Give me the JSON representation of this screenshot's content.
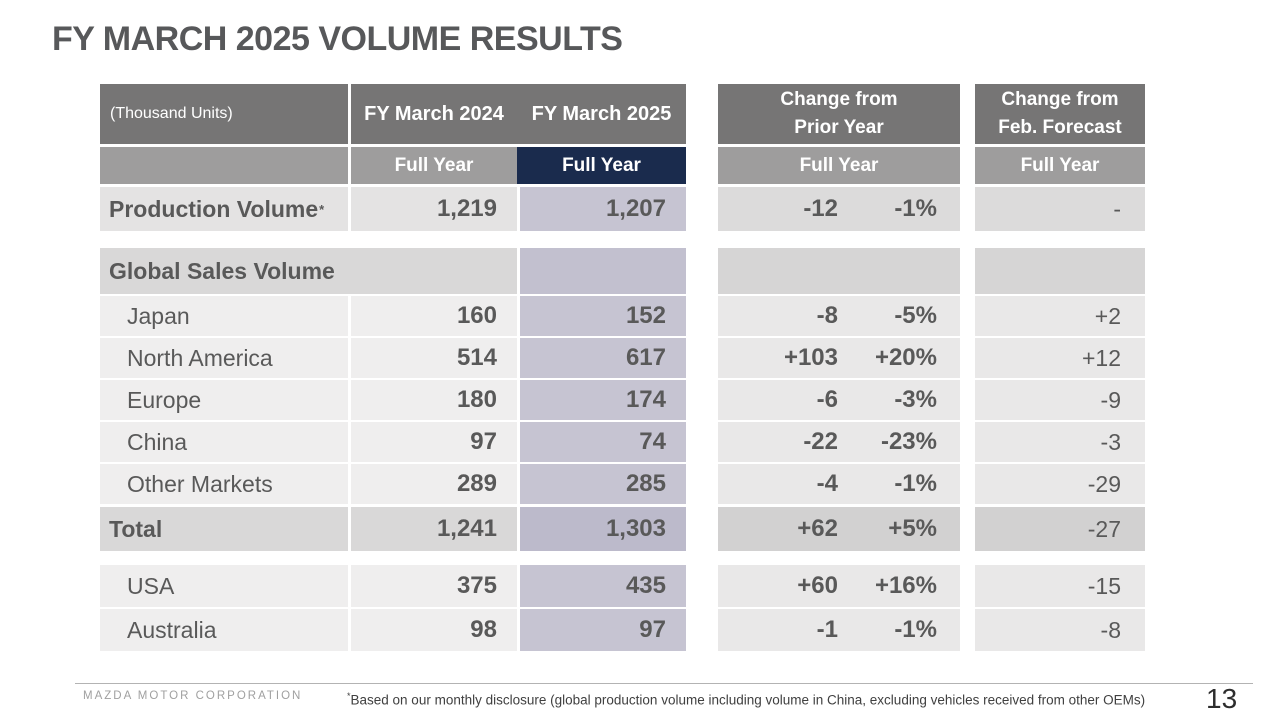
{
  "slide": {
    "title": "FY MARCH 2025 VOLUME RESULTS",
    "page_number": "13"
  },
  "colors": {
    "accent_navy": "#1a2b4d",
    "highlight_lavender": "#c6c4d2",
    "header_dark_gray": "#767575",
    "header_mid_gray": "#9e9d9d",
    "text_gray": "#595959"
  },
  "headers": {
    "unit_label": "(Thousand Units)",
    "fy2024": "FY March 2024",
    "fy2025": "FY March 2025",
    "full_year": "Full Year",
    "change_prior": {
      "line1": "Change from",
      "line2": "Prior Year"
    },
    "change_forecast": {
      "line1": "Change from",
      "line2": "Feb. Forecast"
    }
  },
  "rows": {
    "production": {
      "label": "Production Volume",
      "footnote_mark": "*",
      "fy2024": "1,219",
      "fy2025": "1,207",
      "change": "-12",
      "change_pct": "-1%",
      "forecast": "-"
    },
    "sales_section": {
      "label": "Global Sales Volume"
    },
    "japan": {
      "label": "Japan",
      "fy2024": "160",
      "fy2025": "152",
      "change": "-8",
      "change_pct": "-5%",
      "forecast": "+2"
    },
    "north_america": {
      "label": "North America",
      "fy2024": "514",
      "fy2025": "617",
      "change": "+103",
      "change_pct": "+20%",
      "forecast": "+12"
    },
    "europe": {
      "label": "Europe",
      "fy2024": "180",
      "fy2025": "174",
      "change": "-6",
      "change_pct": "-3%",
      "forecast": "-9"
    },
    "china": {
      "label": "China",
      "fy2024": "97",
      "fy2025": "74",
      "change": "-22",
      "change_pct": "-23%",
      "forecast": "-3"
    },
    "other_markets": {
      "label": "Other Markets",
      "fy2024": "289",
      "fy2025": "285",
      "change": "-4",
      "change_pct": "-1%",
      "forecast": "-29"
    },
    "total": {
      "label": "Total",
      "fy2024": "1,241",
      "fy2025": "1,303",
      "change": "+62",
      "change_pct": "+5%",
      "forecast": "-27"
    },
    "usa": {
      "label": "USA",
      "fy2024": "375",
      "fy2025": "435",
      "change": "+60",
      "change_pct": "+16%",
      "forecast": "-15"
    },
    "australia": {
      "label": "Australia",
      "fy2024": "98",
      "fy2025": "97",
      "change": "-1",
      "change_pct": "-1%",
      "forecast": "-8"
    }
  },
  "footer": {
    "brand": "MAZDA MOTOR CORPORATION",
    "footnote_mark": "*",
    "footnote": "Based on our monthly disclosure (global production volume including volume in China, excluding vehicles received from other OEMs)"
  }
}
